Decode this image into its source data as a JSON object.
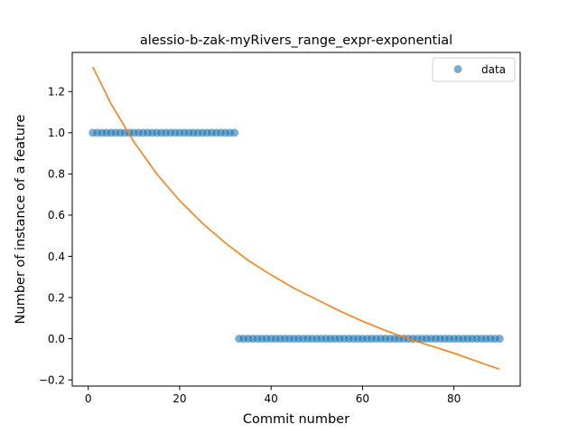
{
  "chart_data": {
    "type": "scatter",
    "title": "alessio-b-zak-myRivers_range_expr-exponential",
    "xlabel": "Commit number",
    "ylabel": "Number of instance of a feature",
    "xlim": [
      -3.5,
      94.5
    ],
    "ylim": [
      -0.23,
      1.39
    ],
    "xticks": [
      0,
      20,
      40,
      60,
      80
    ],
    "xtick_labels": [
      "0",
      "20",
      "40",
      "60",
      "80"
    ],
    "yticks": [
      -0.2,
      0.0,
      0.2,
      0.4,
      0.6,
      0.8,
      1.0,
      1.2
    ],
    "ytick_labels": [
      "−0.2",
      "0.0",
      "0.2",
      "0.4",
      "0.6",
      "0.8",
      "1.0",
      "1.2"
    ],
    "grid": false,
    "legend_position": "top-right",
    "series": [
      {
        "name": "data",
        "kind": "scatter",
        "color": "#1f77b4",
        "points": [
          [
            1,
            1
          ],
          [
            2,
            1
          ],
          [
            3,
            1
          ],
          [
            4,
            1
          ],
          [
            5,
            1
          ],
          [
            6,
            1
          ],
          [
            7,
            1
          ],
          [
            8,
            1
          ],
          [
            9,
            1
          ],
          [
            10,
            1
          ],
          [
            11,
            1
          ],
          [
            12,
            1
          ],
          [
            13,
            1
          ],
          [
            14,
            1
          ],
          [
            15,
            1
          ],
          [
            16,
            1
          ],
          [
            17,
            1
          ],
          [
            18,
            1
          ],
          [
            19,
            1
          ],
          [
            20,
            1
          ],
          [
            21,
            1
          ],
          [
            22,
            1
          ],
          [
            23,
            1
          ],
          [
            24,
            1
          ],
          [
            25,
            1
          ],
          [
            26,
            1
          ],
          [
            27,
            1
          ],
          [
            28,
            1
          ],
          [
            29,
            1
          ],
          [
            30,
            1
          ],
          [
            31,
            1
          ],
          [
            32,
            1
          ],
          [
            33,
            0
          ],
          [
            34,
            0
          ],
          [
            35,
            0
          ],
          [
            36,
            0
          ],
          [
            37,
            0
          ],
          [
            38,
            0
          ],
          [
            39,
            0
          ],
          [
            40,
            0
          ],
          [
            41,
            0
          ],
          [
            42,
            0
          ],
          [
            43,
            0
          ],
          [
            44,
            0
          ],
          [
            45,
            0
          ],
          [
            46,
            0
          ],
          [
            47,
            0
          ],
          [
            48,
            0
          ],
          [
            49,
            0
          ],
          [
            50,
            0
          ],
          [
            51,
            0
          ],
          [
            52,
            0
          ],
          [
            53,
            0
          ],
          [
            54,
            0
          ],
          [
            55,
            0
          ],
          [
            56,
            0
          ],
          [
            57,
            0
          ],
          [
            58,
            0
          ],
          [
            59,
            0
          ],
          [
            60,
            0
          ],
          [
            61,
            0
          ],
          [
            62,
            0
          ],
          [
            63,
            0
          ],
          [
            64,
            0
          ],
          [
            65,
            0
          ],
          [
            66,
            0
          ],
          [
            67,
            0
          ],
          [
            68,
            0
          ],
          [
            69,
            0
          ],
          [
            70,
            0
          ],
          [
            71,
            0
          ],
          [
            72,
            0
          ],
          [
            73,
            0
          ],
          [
            74,
            0
          ],
          [
            75,
            0
          ],
          [
            76,
            0
          ],
          [
            77,
            0
          ],
          [
            78,
            0
          ],
          [
            79,
            0
          ],
          [
            80,
            0
          ],
          [
            81,
            0
          ],
          [
            82,
            0
          ],
          [
            83,
            0
          ],
          [
            84,
            0
          ],
          [
            85,
            0
          ],
          [
            86,
            0
          ],
          [
            87,
            0
          ],
          [
            88,
            0
          ],
          [
            89,
            0
          ],
          [
            90,
            0
          ]
        ]
      },
      {
        "kind": "line",
        "color": "#ff7f0e",
        "points": [
          [
            1,
            1.32
          ],
          [
            5,
            1.14
          ],
          [
            10,
            0.955
          ],
          [
            15,
            0.8
          ],
          [
            20,
            0.67
          ],
          [
            25,
            0.56
          ],
          [
            30,
            0.465
          ],
          [
            35,
            0.38
          ],
          [
            40,
            0.31
          ],
          [
            45,
            0.245
          ],
          [
            50,
            0.19
          ],
          [
            55,
            0.135
          ],
          [
            60,
            0.085
          ],
          [
            65,
            0.04
          ],
          [
            70,
            0.0
          ],
          [
            75,
            -0.035
          ],
          [
            80,
            -0.07
          ],
          [
            85,
            -0.11
          ],
          [
            90,
            -0.148
          ]
        ]
      }
    ]
  }
}
